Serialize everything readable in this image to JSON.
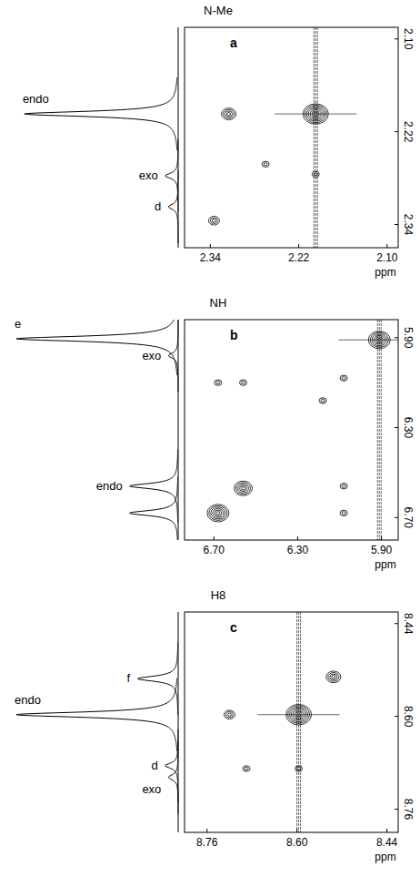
{
  "chart_data": [
    {
      "type": "contour",
      "title": "N-Me",
      "panel_label": "a",
      "x_label": "ppm",
      "xlim": [
        2.375,
        2.085
      ],
      "ylim": [
        2.085,
        2.37
      ],
      "xticks": [
        2.34,
        2.22,
        {
          "value": 2.1,
          "label": "2.10"
        }
      ],
      "yticks": [
        {
          "value": 2.1,
          "label": "2.10"
        },
        2.22,
        2.34
      ],
      "peaks": [
        {
          "x": 2.197,
          "y": 2.197,
          "intensity": 1.0
        },
        {
          "x": 2.315,
          "y": 2.197,
          "intensity": 0.55
        },
        {
          "x": 2.265,
          "y": 2.262,
          "intensity": 0.35
        },
        {
          "x": 2.335,
          "y": 2.335,
          "intensity": 0.45
        },
        {
          "x": 2.197,
          "y": 2.275,
          "intensity": 0.3
        }
      ],
      "spectrum": [
        {
          "ppm": 2.197,
          "height": 0.95,
          "label": "endo"
        },
        {
          "ppm": 2.277,
          "height": 0.08,
          "label": "exo"
        },
        {
          "ppm": 2.317,
          "height": 0.06,
          "label": "d"
        }
      ]
    },
    {
      "type": "contour",
      "title": "NH",
      "panel_label": "b",
      "x_label": "ppm",
      "xlim": [
        6.84,
        5.82
      ],
      "ylim": [
        5.82,
        6.8
      ],
      "xticks": [
        {
          "value": 6.7,
          "label": "6.70"
        },
        {
          "value": 6.3,
          "label": "6.30"
        },
        {
          "value": 5.9,
          "label": "5.90"
        }
      ],
      "yticks": [
        {
          "value": 5.9,
          "label": "5.90"
        },
        {
          "value": 6.3,
          "label": "6.30"
        },
        {
          "value": 6.7,
          "label": "6.70"
        }
      ],
      "peaks": [
        {
          "x": 5.91,
          "y": 5.91,
          "intensity": 0.9
        },
        {
          "x": 6.08,
          "y": 6.08,
          "intensity": 0.2
        },
        {
          "x": 6.18,
          "y": 6.18,
          "intensity": 0.15
        },
        {
          "x": 6.68,
          "y": 6.1,
          "intensity": 0.3
        },
        {
          "x": 6.56,
          "y": 6.1,
          "intensity": 0.3
        },
        {
          "x": 6.68,
          "y": 6.68,
          "intensity": 0.8
        },
        {
          "x": 6.56,
          "y": 6.57,
          "intensity": 0.7
        },
        {
          "x": 6.08,
          "y": 6.56,
          "intensity": 0.3
        },
        {
          "x": 6.08,
          "y": 6.68,
          "intensity": 0.3
        }
      ],
      "spectrum": [
        {
          "ppm": 5.905,
          "height": 1.0,
          "label": "e"
        },
        {
          "ppm": 5.98,
          "height": 0.06,
          "label": "exo"
        },
        {
          "ppm": 6.56,
          "height": 0.3,
          "label": "endo"
        },
        {
          "ppm": 6.68,
          "height": 0.3
        }
      ]
    },
    {
      "type": "contour",
      "title": "H8",
      "panel_label": "c",
      "x_label": "ppm",
      "xlim": [
        8.8,
        8.42
      ],
      "ylim": [
        8.42,
        8.8
      ],
      "xticks": [
        8.76,
        {
          "value": 8.6,
          "label": "8.60"
        },
        8.44
      ],
      "yticks": [
        8.44,
        {
          "value": 8.6,
          "label": "8.60"
        },
        8.76
      ],
      "peaks": [
        {
          "x": 8.597,
          "y": 8.597,
          "intensity": 1.0
        },
        {
          "x": 8.535,
          "y": 8.532,
          "intensity": 0.5
        },
        {
          "x": 8.72,
          "y": 8.597,
          "intensity": 0.45
        },
        {
          "x": 8.69,
          "y": 8.69,
          "intensity": 0.25
        },
        {
          "x": 8.597,
          "y": 8.69,
          "intensity": 0.3
        }
      ],
      "spectrum": [
        {
          "ppm": 8.535,
          "height": 0.25,
          "label": "f"
        },
        {
          "ppm": 8.597,
          "height": 1.0,
          "label": "endo"
        },
        {
          "ppm": 8.685,
          "height": 0.08,
          "label": "d"
        },
        {
          "ppm": 8.705,
          "height": 0.06,
          "label": "exo"
        }
      ]
    }
  ]
}
